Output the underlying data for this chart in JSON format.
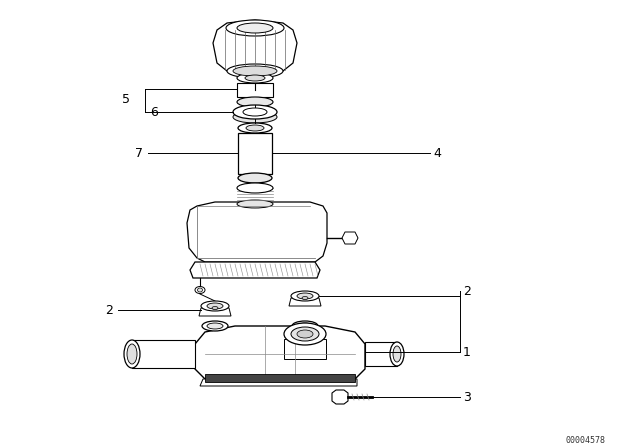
{
  "background_color": "#ffffff",
  "line_color": "#000000",
  "watermark": "00004578",
  "fig_width": 6.4,
  "fig_height": 4.48,
  "dpi": 100
}
